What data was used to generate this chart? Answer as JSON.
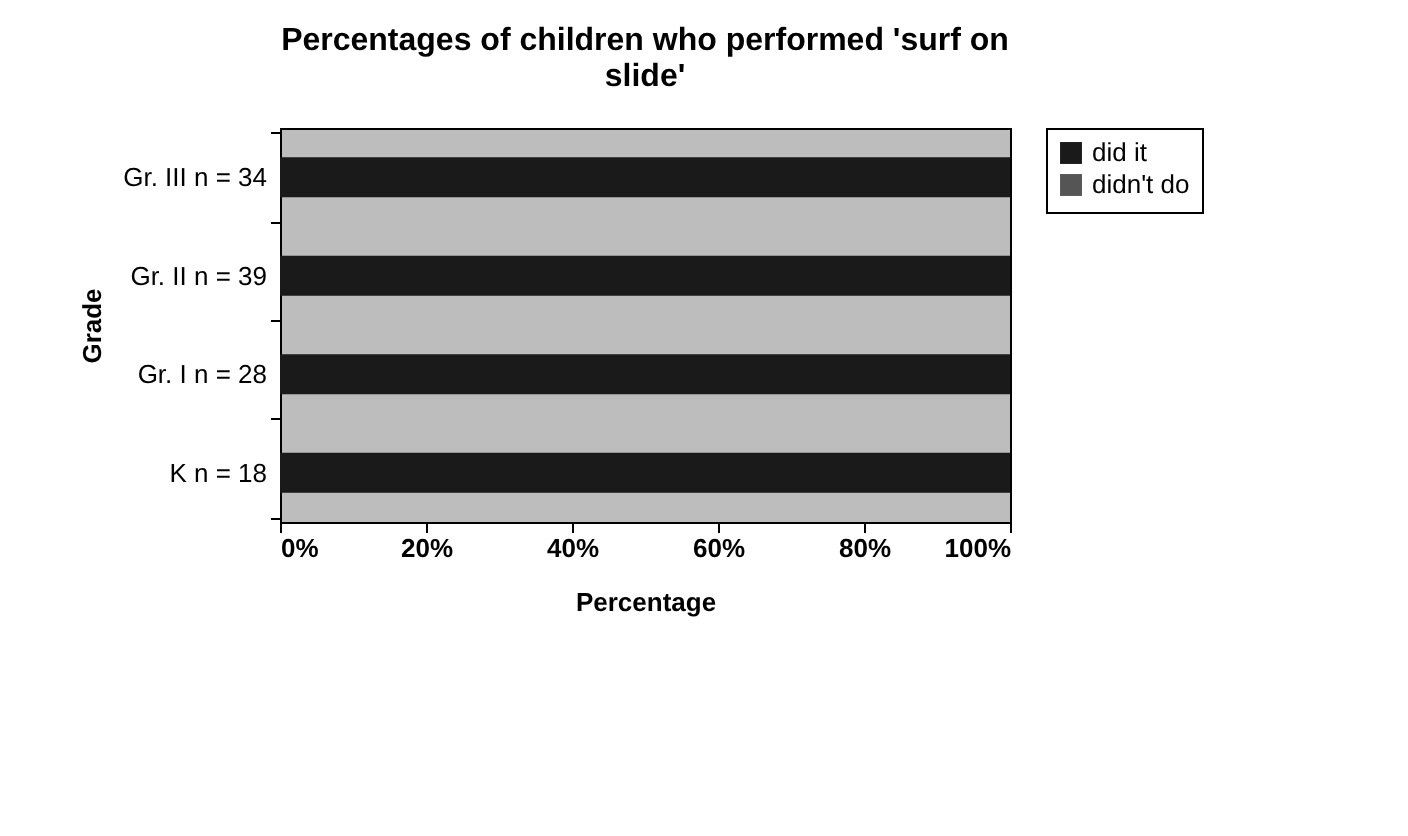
{
  "chart_data": {
    "type": "bar",
    "orientation": "horizontal",
    "stacked": true,
    "title": "Percentages of children who performed 'surf on slide'",
    "xlabel": "Percentage",
    "ylabel": "Grade",
    "categories": [
      "Gr. III n = 34",
      "Gr. II n = 39",
      "Gr. I n = 28",
      "K n = 18"
    ],
    "series": [
      {
        "name": "did it",
        "color": "#1a1a1a",
        "values": [
          100,
          100,
          100,
          100
        ]
      },
      {
        "name": "didn't do",
        "color": "#555555",
        "values": [
          0,
          0,
          0,
          0
        ]
      }
    ],
    "xlim": [
      0,
      100
    ],
    "xticks": [
      {
        "value": 0,
        "label": "0%"
      },
      {
        "value": 20,
        "label": "20%"
      },
      {
        "value": 40,
        "label": "40%"
      },
      {
        "value": 60,
        "label": "60%"
      },
      {
        "value": 80,
        "label": "80%"
      },
      {
        "value": 100,
        "label": "100%"
      }
    ],
    "grid": false,
    "legend": "right"
  }
}
